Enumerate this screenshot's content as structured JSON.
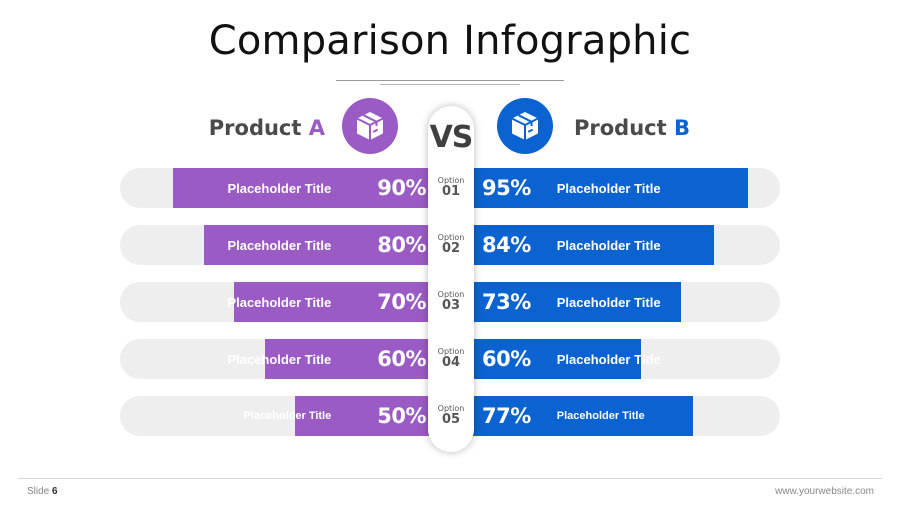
{
  "slide": {
    "title": "Comparison Infographic",
    "vs_label": "VS",
    "product_a": {
      "name": "Product ",
      "letter": "A",
      "icon": "box-icon",
      "color": "#9b5bc4"
    },
    "product_b": {
      "name": "Product ",
      "letter": "B",
      "icon": "box-icon",
      "color": "#0b63d1"
    },
    "option_word": "Option",
    "rows": [
      {
        "option": "01",
        "a_title": "Placeholder Title",
        "a_pct": "90%",
        "a_value": 90,
        "b_title": "Placeholder Title",
        "b_pct": "95%",
        "b_value": 95
      },
      {
        "option": "02",
        "a_title": "Placeholder Title",
        "a_pct": "80%",
        "a_value": 80,
        "b_title": "Placeholder Title",
        "b_pct": "84%",
        "b_value": 84
      },
      {
        "option": "03",
        "a_title": "Placeholder Title",
        "a_pct": "70%",
        "a_value": 70,
        "b_title": "Placeholder Title",
        "b_pct": "73%",
        "b_value": 73
      },
      {
        "option": "04",
        "a_title": "Placeholder Title",
        "a_pct": "60%",
        "a_value": 60,
        "b_title": "Placeholder Title",
        "b_pct": "60%",
        "b_value": 60
      },
      {
        "option": "05",
        "a_title": "Placeholder Title",
        "a_pct": "50%",
        "a_value": 50,
        "b_title": "Placeholder Title",
        "b_pct": "77%",
        "b_value": 77
      }
    ],
    "footer": {
      "slide_label": "Slide ",
      "slide_number": "6",
      "website": "www.yourwebsite.com"
    }
  }
}
